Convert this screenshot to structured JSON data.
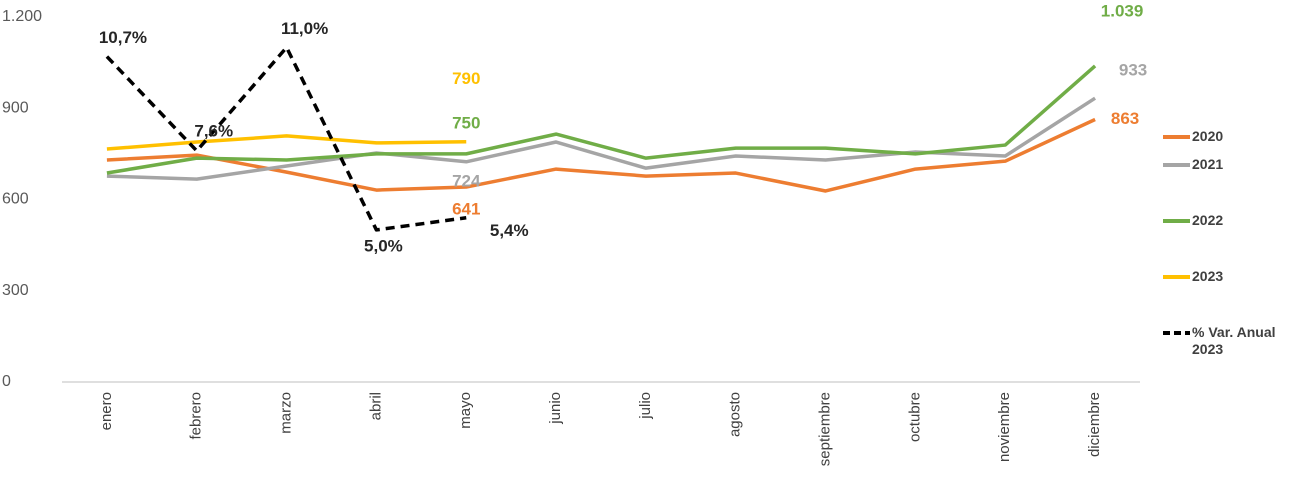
{
  "chart_data": {
    "type": "line",
    "categories": [
      "enero",
      "febrero",
      "marzo",
      "abril",
      "mayo",
      "junio",
      "julio",
      "agosto",
      "septiembre",
      "octubre",
      "noviembre",
      "diciembre"
    ],
    "ylim": [
      0,
      1200
    ],
    "yticks": [
      0,
      300,
      600,
      900,
      {
        "value": 1200,
        "label": "1.200"
      }
    ],
    "y2lim": [
      0,
      12
    ],
    "legend": "right",
    "series": [
      {
        "name": "2020",
        "color": "#ED7D31",
        "values": [
          730,
          746,
          690,
          631,
          641,
          700,
          677,
          687,
          628,
          700,
          726,
          863
        ],
        "value_labels": [
          null,
          null,
          null,
          null,
          "641",
          null,
          null,
          null,
          null,
          null,
          null,
          "863"
        ]
      },
      {
        "name": "2021",
        "color": "#A5A5A5",
        "values": [
          677,
          667,
          710,
          753,
          724,
          789,
          703,
          743,
          730,
          756,
          743,
          933
        ],
        "value_labels": [
          null,
          null,
          null,
          null,
          "724",
          null,
          null,
          null,
          null,
          null,
          null,
          "933"
        ]
      },
      {
        "name": "2022",
        "color": "#70AD47",
        "values": [
          687,
          736,
          730,
          750,
          750,
          815,
          736,
          769,
          769,
          750,
          779,
          1039
        ],
        "value_labels": [
          null,
          null,
          null,
          null,
          "750",
          null,
          null,
          null,
          null,
          null,
          null,
          "1.039"
        ]
      },
      {
        "name": "2023",
        "color": "#FFC000",
        "values": [
          766,
          789,
          809,
          786,
          790,
          null,
          null,
          null,
          null,
          null,
          null,
          null
        ],
        "value_labels": [
          null,
          null,
          null,
          null,
          "790",
          null,
          null,
          null,
          null,
          null,
          null,
          null
        ]
      },
      {
        "name": "% Var. Anual 2023",
        "color": "#000000",
        "axis": "y2",
        "dashed": true,
        "values": [
          10.7,
          7.6,
          11.0,
          5.0,
          5.4,
          null,
          null,
          null,
          null,
          null,
          null,
          null
        ],
        "value_labels": [
          "10,7%",
          "7,6%",
          "11,0%",
          "5,0%",
          "5,4%",
          null,
          null,
          null,
          null,
          null,
          null,
          null
        ]
      }
    ]
  }
}
